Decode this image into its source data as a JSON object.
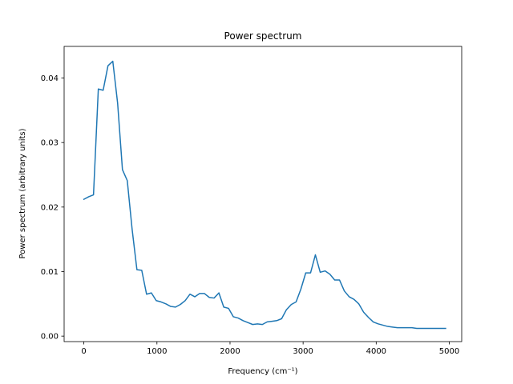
{
  "chart_data": {
    "type": "line",
    "title": "Power spectrum",
    "xlabel": "Frequency (cm⁻¹)",
    "ylabel": "Power spectrum (arbitrary units)",
    "xlim": [
      -270,
      5170
    ],
    "ylim": [
      -0.00085,
      0.0449
    ],
    "xticks": [
      0,
      1000,
      2000,
      3000,
      4000,
      5000
    ],
    "xtick_labels": [
      "0",
      "1000",
      "2000",
      "3000",
      "4000",
      "5000"
    ],
    "yticks": [
      0.0,
      0.01,
      0.02,
      0.03,
      0.04
    ],
    "ytick_labels": [
      "0.00",
      "0.01",
      "0.02",
      "0.03",
      "0.04"
    ],
    "grid": false,
    "series": [
      {
        "color": "#1f77b4",
        "x": [
          0,
          66,
          132,
          198,
          264,
          330,
          396,
          462,
          528,
          594,
          660,
          726,
          792,
          858,
          924,
          990,
          1056,
          1122,
          1188,
          1254,
          1320,
          1386,
          1452,
          1518,
          1584,
          1650,
          1716,
          1782,
          1848,
          1914,
          1980,
          2046,
          2112,
          2178,
          2244,
          2310,
          2376,
          2442,
          2508,
          2574,
          2640,
          2706,
          2772,
          2838,
          2904,
          2970,
          3036,
          3102,
          3168,
          3234,
          3300,
          3366,
          3432,
          3498,
          3564,
          3630,
          3696,
          3762,
          3828,
          3894,
          3960,
          4026,
          4092,
          4158,
          4224,
          4290,
          4356,
          4422,
          4488,
          4554,
          4620,
          4686,
          4752,
          4818,
          4884,
          4950
        ],
        "y": [
          0.0212,
          0.0216,
          0.0219,
          0.0383,
          0.0381,
          0.0419,
          0.0426,
          0.0361,
          0.0258,
          0.0241,
          0.0166,
          0.0103,
          0.0102,
          0.0065,
          0.0067,
          0.0055,
          0.0053,
          0.005,
          0.0046,
          0.0045,
          0.0049,
          0.0055,
          0.0065,
          0.0061,
          0.0066,
          0.0066,
          0.006,
          0.0059,
          0.0067,
          0.0045,
          0.0043,
          0.003,
          0.0028,
          0.0024,
          0.0021,
          0.0018,
          0.0019,
          0.0018,
          0.0022,
          0.0023,
          0.0024,
          0.0027,
          0.0041,
          0.0049,
          0.0053,
          0.0073,
          0.0098,
          0.0098,
          0.0126,
          0.0099,
          0.0101,
          0.0096,
          0.0087,
          0.0087,
          0.007,
          0.0061,
          0.0057,
          0.005,
          0.0037,
          0.0029,
          0.0022,
          0.0019,
          0.0017,
          0.0015,
          0.0014,
          0.0013,
          0.0013,
          0.0013,
          0.0013,
          0.0012,
          0.0012,
          0.0012,
          0.0012,
          0.0012,
          0.0012,
          0.0012
        ]
      }
    ]
  }
}
